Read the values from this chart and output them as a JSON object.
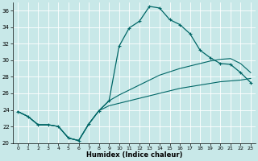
{
  "xlabel": "Humidex (Indice chaleur)",
  "background_color": "#c8e8e8",
  "grid_color": "#ffffff",
  "line_color": "#006666",
  "xlim": [
    -0.5,
    23.5
  ],
  "ylim": [
    20,
    37
  ],
  "xticks": [
    0,
    1,
    2,
    3,
    4,
    5,
    6,
    7,
    8,
    9,
    10,
    11,
    12,
    13,
    14,
    15,
    16,
    17,
    18,
    19,
    20,
    21,
    22,
    23
  ],
  "yticks": [
    20,
    22,
    24,
    26,
    28,
    30,
    32,
    34,
    36
  ],
  "curve_main_x": [
    0,
    1,
    2,
    3,
    4,
    5,
    6,
    7,
    8,
    9,
    10,
    11,
    12,
    13,
    14,
    15,
    16,
    17,
    18,
    19,
    20,
    21,
    22,
    23
  ],
  "curve_main_y": [
    23.8,
    23.2,
    22.2,
    22.2,
    22.0,
    20.6,
    20.3,
    22.3,
    23.9,
    25.1,
    31.7,
    33.9,
    34.7,
    36.5,
    36.3,
    34.9,
    34.3,
    33.2,
    31.2,
    30.3,
    29.6,
    29.5,
    28.5,
    27.3
  ],
  "curve_upper_x": [
    0,
    1,
    2,
    3,
    4,
    5,
    6,
    7,
    8,
    9,
    10,
    11,
    12,
    13,
    14,
    15,
    16,
    17,
    18,
    19,
    20,
    21,
    22,
    23
  ],
  "curve_upper_y": [
    23.8,
    23.2,
    22.2,
    22.2,
    22.0,
    20.6,
    20.3,
    22.3,
    23.9,
    25.1,
    25.8,
    26.4,
    27.0,
    27.6,
    28.2,
    28.6,
    29.0,
    29.3,
    29.6,
    29.9,
    30.1,
    30.2,
    29.6,
    28.5
  ],
  "curve_lower_x": [
    0,
    1,
    2,
    3,
    4,
    5,
    6,
    7,
    8,
    9,
    10,
    11,
    12,
    13,
    14,
    15,
    16,
    17,
    18,
    19,
    20,
    21,
    22,
    23
  ],
  "curve_lower_y": [
    23.8,
    23.2,
    22.2,
    22.2,
    22.0,
    20.6,
    20.3,
    22.3,
    23.9,
    24.5,
    24.8,
    25.1,
    25.4,
    25.7,
    26.0,
    26.3,
    26.6,
    26.8,
    27.0,
    27.2,
    27.4,
    27.5,
    27.6,
    27.8
  ]
}
